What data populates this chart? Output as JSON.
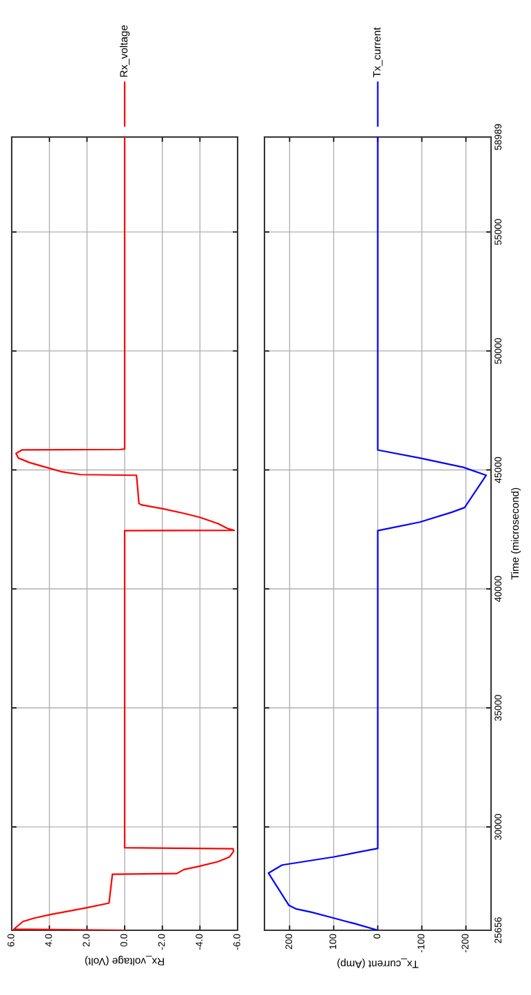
{
  "chart_data": [
    {
      "type": "line",
      "xlabel": "Rx_voltage (Volt)",
      "ylim": [
        25656,
        58989
      ],
      "yticks": [
        25656,
        30000,
        35000,
        40000,
        45000,
        50000,
        55000,
        58989
      ],
      "xlim": [
        6,
        -6
      ],
      "xticks": [
        {
          "value": 6,
          "label": "6.0"
        },
        {
          "value": 4,
          "label": "4.0"
        },
        {
          "value": 2,
          "label": "2.0"
        },
        {
          "value": 0,
          "label": "0.0"
        },
        {
          "value": -2,
          "label": "-2.0"
        },
        {
          "value": -4,
          "label": "-4.0"
        },
        {
          "value": -6,
          "label": "-6.0"
        }
      ],
      "tick_labels": "x",
      "grid": true,
      "legend": "top",
      "series": [
        {
          "name": "Rx_voltage",
          "color": "#ff0000",
          "values": [
            25656,
            25700,
            26025,
            26170,
            26316,
            26461,
            26607,
            26800,
            28010,
            28040,
            28205,
            28350,
            28543,
            28737,
            28980,
            29078,
            29100,
            29124,
            42450,
            42460,
            42546,
            42740,
            43011,
            43176,
            43368,
            43534,
            43592,
            44775,
            44804,
            44921,
            45112,
            45307,
            45502,
            45694,
            45839,
            45860,
            45880,
            58989
          ],
          "x": [
            0.0,
            5.89,
            5.4,
            4.79,
            3.94,
            2.96,
            1.99,
            0.83,
            0.65,
            -2.77,
            -3.14,
            -3.99,
            -4.97,
            -5.57,
            -5.79,
            -5.76,
            -3.07,
            0.0,
            0.0,
            -5.82,
            -5.45,
            -4.97,
            -3.99,
            -3.14,
            -2.04,
            -0.88,
            -0.76,
            -0.63,
            2.35,
            3.33,
            4.18,
            5.04,
            5.65,
            5.77,
            5.46,
            0.22,
            0.0,
            0.0
          ]
        }
      ]
    },
    {
      "type": "line",
      "ylabel": "Time (microsecond)",
      "xlabel": "Tx_current (Amp)",
      "ylim": [
        25656,
        58989
      ],
      "yticks": [
        25656,
        30000,
        35000,
        40000,
        45000,
        50000,
        55000,
        58989
      ],
      "xlim": [
        257,
        -257
      ],
      "xticks": [
        -200,
        -100,
        0,
        100,
        200
      ],
      "grid": true,
      "legend": "top",
      "series": [
        {
          "name": "Tx_current",
          "color": "#0000ff",
          "values": [
            25656,
            25926,
            26170,
            26412,
            26557,
            26702,
            28060,
            28397,
            28737,
            29095,
            42450,
            42807,
            43223,
            43418,
            44775,
            45112,
            45502,
            45839,
            58989
          ],
          "x": [
            0,
            50.5,
            100,
            149.5,
            186,
            201.5,
            248,
            217,
            100,
            0,
            0,
            -95.3,
            -168,
            -197,
            -246,
            -194,
            -95,
            0,
            0
          ]
        }
      ]
    }
  ]
}
